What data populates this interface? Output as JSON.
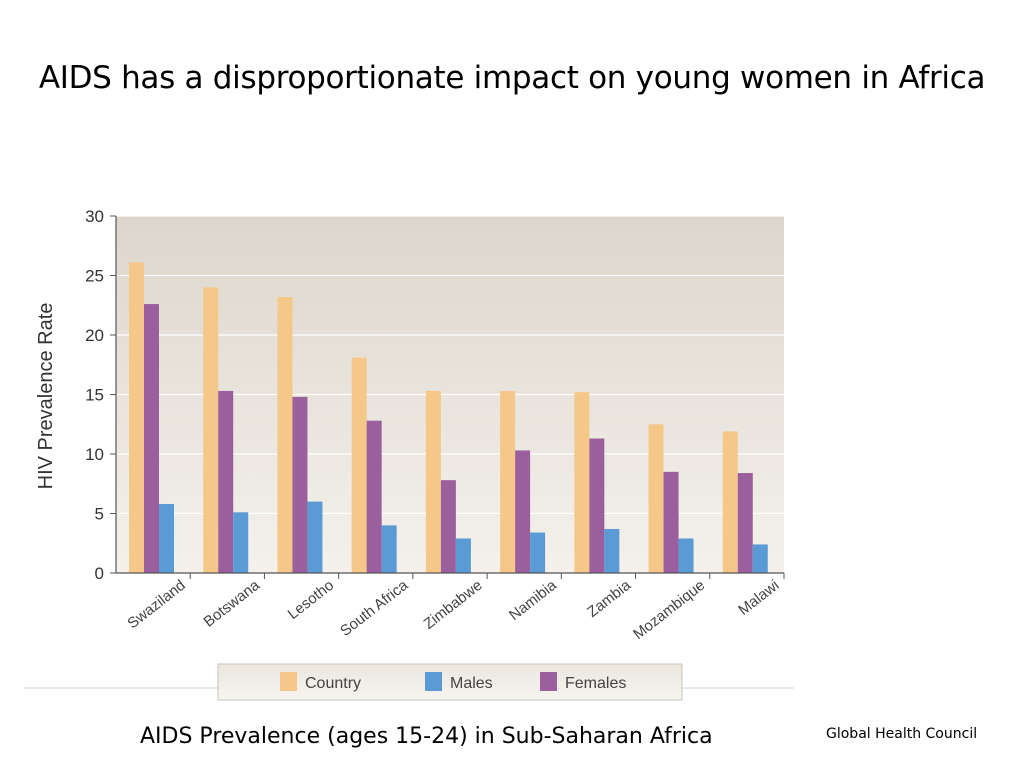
{
  "slide": {
    "title": "AIDS has a disproportionate impact on young women in Africa",
    "caption": "AIDS Prevalence (ages 15-24) in Sub-Saharan Africa",
    "source": "Global Health Council"
  },
  "colors": {
    "Country": "#f5c88a",
    "Males": "#5b9bd5",
    "Females": "#9a5f9c",
    "plot_bg": "#e7e2da"
  },
  "chart_data": {
    "type": "bar",
    "title": "",
    "xlabel": "",
    "ylabel": "HIV Prevalence Rate",
    "ylim": [
      0,
      30
    ],
    "yticks": [
      0,
      5,
      10,
      15,
      20,
      25,
      30
    ],
    "grid": true,
    "legend": "bottom",
    "categories": [
      "Swaziland",
      "Botswana",
      "Lesotho",
      "South Africa",
      "Zimbabwe",
      "Namibia",
      "Zambia",
      "Mozambique",
      "Malawi"
    ],
    "series": [
      {
        "name": "Country",
        "values": [
          26.1,
          24.0,
          23.2,
          18.1,
          15.3,
          15.3,
          15.2,
          12.5,
          11.9
        ]
      },
      {
        "name": "Males",
        "values": [
          5.8,
          5.1,
          6.0,
          4.0,
          2.9,
          3.4,
          3.7,
          2.9,
          2.4
        ]
      },
      {
        "name": "Females",
        "values": [
          22.6,
          15.3,
          14.8,
          12.8,
          7.8,
          10.3,
          11.3,
          8.5,
          8.4
        ]
      }
    ],
    "bar_order": [
      "Country",
      "Females",
      "Males"
    ]
  }
}
